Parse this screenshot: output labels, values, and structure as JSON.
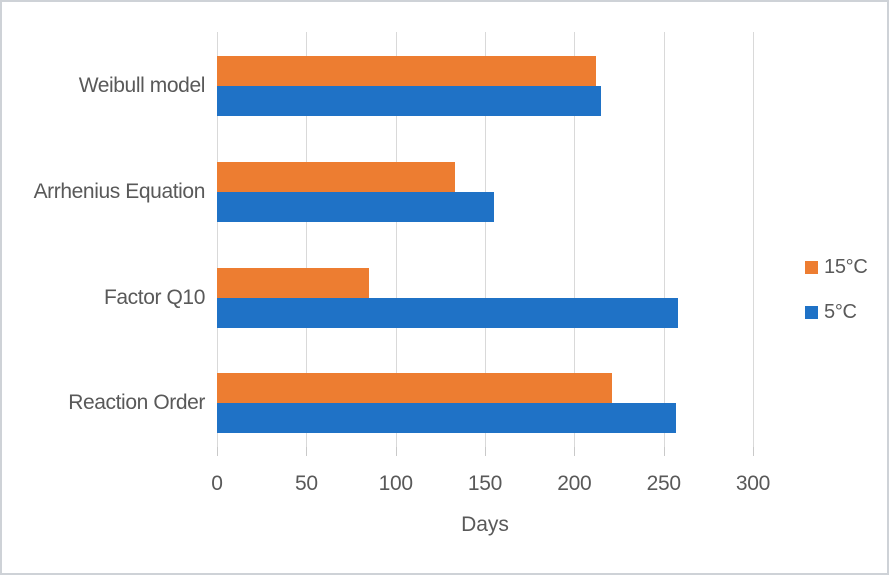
{
  "chart_data": {
    "type": "bar",
    "orientation": "horizontal",
    "title": "",
    "xlabel": "Days",
    "xlim": [
      0,
      300
    ],
    "xticks": [
      0,
      50,
      100,
      150,
      200,
      250,
      300
    ],
    "grid": true,
    "legend_position": "right",
    "categories": [
      "Weibull model",
      "Arrhenius Equation",
      "Factor Q10",
      "Reaction Order"
    ],
    "series": [
      {
        "name": "15°C",
        "color": "#ED7D31",
        "values": [
          212,
          133,
          85,
          221
        ]
      },
      {
        "name": "5°C",
        "color": "#1F72C6",
        "values": [
          215,
          155,
          258,
          257
        ]
      }
    ]
  },
  "styles": {
    "text_color": "#595959",
    "gridline_color": "#D9D9D9",
    "background": "#FFFFFF",
    "border_color": "#CED2D7"
  }
}
